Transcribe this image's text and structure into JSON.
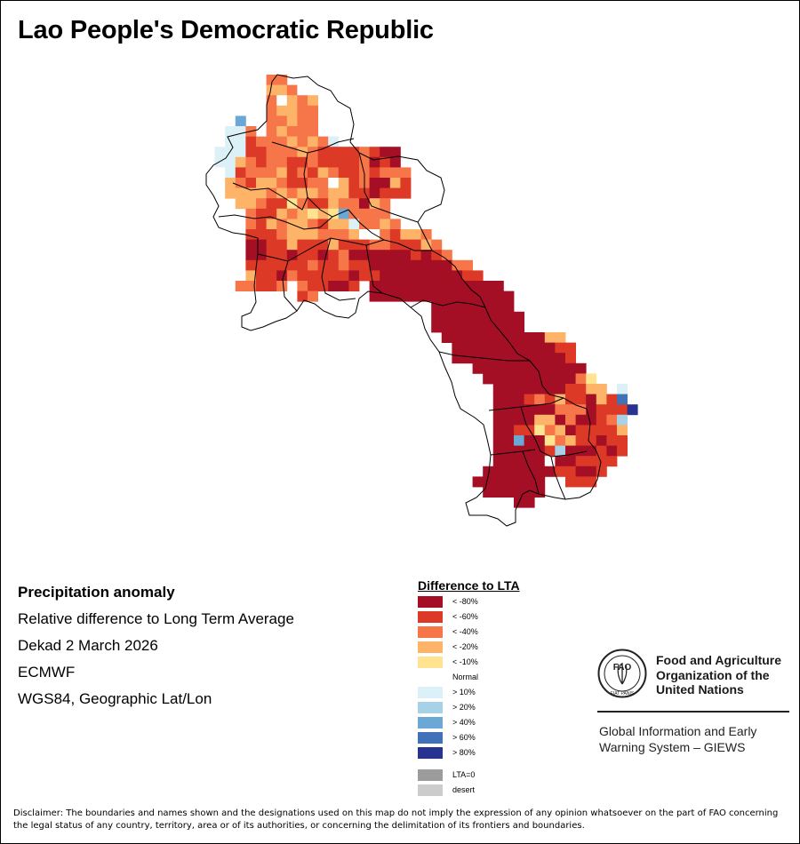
{
  "map": {
    "title": "Lao People's Democratic Republic",
    "colors": {
      "lt_m80": "#a50f25",
      "lt_m60": "#dd3927",
      "lt_m40": "#f6764a",
      "lt_m20": "#fdb368",
      "lt_m10": "#fee391",
      "normal": "#ffffff",
      "gt_10": "#dcf1f7",
      "gt_20": "#a6d1e6",
      "gt_40": "#6ba8d6",
      "gt_60": "#3f72b8",
      "gt_80": "#27338f",
      "lta0": "#9c9c9c",
      "desert": "#cccccc"
    }
  },
  "info": {
    "heading": "Precipitation anomaly",
    "line1": "Relative difference to Long Term Average",
    "line2": "Dekad 2 March 2026",
    "line3": "ECMWF",
    "line4": "WGS84, Geographic Lat/Lon"
  },
  "legend": {
    "title": "Difference to LTA",
    "items": [
      {
        "label": "< -80%",
        "color": "#a50f25"
      },
      {
        "label": "< -60%",
        "color": "#dd3927"
      },
      {
        "label": "< -40%",
        "color": "#f6764a"
      },
      {
        "label": "< -20%",
        "color": "#fdb368"
      },
      {
        "label": "< -10%",
        "color": "#fee391"
      },
      {
        "label": "Normal",
        "color": "#ffffff"
      },
      {
        "label": "> 10%",
        "color": "#dcf1f7"
      },
      {
        "label": "> 20%",
        "color": "#a6d1e6"
      },
      {
        "label": "> 40%",
        "color": "#6ba8d6"
      },
      {
        "label": "> 60%",
        "color": "#3f72b8"
      },
      {
        "label": "> 80%",
        "color": "#27338f"
      }
    ],
    "extra": [
      {
        "label": "LTA=0",
        "color": "#9c9c9c"
      },
      {
        "label": "desert",
        "color": "#cccccc"
      }
    ]
  },
  "branding": {
    "org_line1": "Food and Agriculture",
    "org_line2": "Organization of the",
    "org_line3": "United Nations",
    "logo_text": "FAO",
    "logo_motto": "FIAT PANIS",
    "system_line1": "Global Information and Early",
    "system_line2": "Warning System – GIEWS"
  },
  "disclaimer": "Disclaimer: The boundaries and names shown and the designations used on this map do not imply the expression of any opinion whatsoever on the part of FAO concerning the legal status of any country, territory, area or of its authorities, or concerning the delimitation of its frontiers and boundaries."
}
